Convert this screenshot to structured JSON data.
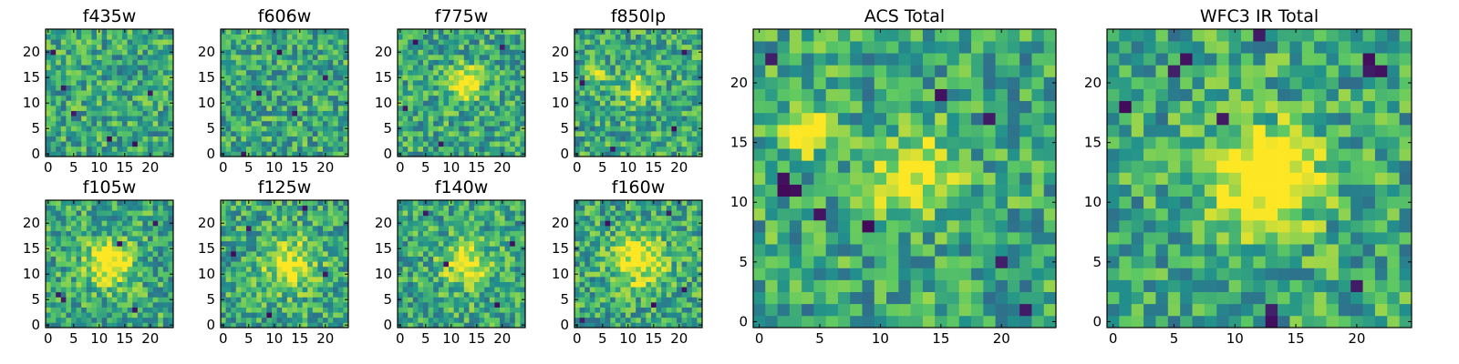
{
  "figure": {
    "background": "#ffffff",
    "colormap": "viridis",
    "colormap_stops": [
      "#440154",
      "#3b528b",
      "#21918c",
      "#5ec962",
      "#fde725"
    ],
    "font_family": "DejaVu Sans"
  },
  "chart_data": [
    {
      "type": "heatmap",
      "title": "f435w",
      "grid_size": 25,
      "seed": 11,
      "xlim": [
        0,
        24
      ],
      "ylim": [
        0,
        24
      ],
      "xticks": [
        0,
        5,
        10,
        15,
        20
      ],
      "yticks": [
        0,
        5,
        10,
        15,
        20
      ],
      "sources": [],
      "dark_pixels": [
        [
          3,
          13
        ],
        [
          5,
          8
        ],
        [
          12,
          3
        ],
        [
          20,
          12
        ],
        [
          1,
          20
        ],
        [
          17,
          2
        ]
      ]
    },
    {
      "type": "heatmap",
      "title": "f606w",
      "grid_size": 25,
      "seed": 23,
      "xlim": [
        0,
        24
      ],
      "ylim": [
        0,
        24
      ],
      "xticks": [
        0,
        5,
        10,
        15,
        20
      ],
      "yticks": [
        0,
        5,
        10,
        15,
        20
      ],
      "sources": [],
      "dark_pixels": [
        [
          11,
          20
        ],
        [
          7,
          12
        ],
        [
          20,
          15
        ],
        [
          4,
          0
        ],
        [
          14,
          8
        ]
      ]
    },
    {
      "type": "heatmap",
      "title": "f775w",
      "grid_size": 25,
      "seed": 37,
      "xlim": [
        0,
        24
      ],
      "ylim": [
        0,
        24
      ],
      "xticks": [
        0,
        5,
        10,
        15,
        20
      ],
      "yticks": [
        0,
        5,
        10,
        15,
        20
      ],
      "sources": [
        [
          13,
          14,
          2.2,
          0.55
        ]
      ],
      "dark_pixels": [
        [
          3,
          22
        ],
        [
          8,
          2
        ],
        [
          20,
          21
        ],
        [
          1,
          9
        ]
      ]
    },
    {
      "type": "heatmap",
      "title": "f850lp",
      "grid_size": 25,
      "seed": 41,
      "xlim": [
        0,
        24
      ],
      "ylim": [
        0,
        24
      ],
      "xticks": [
        0,
        5,
        10,
        15,
        20
      ],
      "yticks": [
        0,
        5,
        10,
        15,
        20
      ],
      "sources": [
        [
          4,
          16,
          0.9,
          0.8
        ],
        [
          12,
          13,
          2.2,
          0.35
        ]
      ],
      "dark_pixels": [
        [
          1,
          14
        ],
        [
          19,
          5
        ],
        [
          21,
          20
        ],
        [
          7,
          1
        ]
      ]
    },
    {
      "type": "heatmap",
      "title": "f105w",
      "grid_size": 25,
      "seed": 53,
      "xlim": [
        0,
        24
      ],
      "ylim": [
        0,
        24
      ],
      "xticks": [
        0,
        5,
        10,
        15,
        20
      ],
      "yticks": [
        0,
        5,
        10,
        15,
        20
      ],
      "sources": [
        [
          12,
          12,
          3.0,
          0.55
        ]
      ],
      "dark_pixels": [
        [
          2,
          6
        ],
        [
          3,
          5
        ],
        [
          14,
          16
        ],
        [
          17,
          3
        ],
        [
          21,
          20
        ]
      ]
    },
    {
      "type": "heatmap",
      "title": "f125w",
      "grid_size": 25,
      "seed": 67,
      "xlim": [
        0,
        24
      ],
      "ylim": [
        0,
        24
      ],
      "xticks": [
        0,
        5,
        10,
        15,
        20
      ],
      "yticks": [
        0,
        5,
        10,
        15,
        20
      ],
      "sources": [
        [
          13,
          12,
          3.5,
          0.4
        ]
      ],
      "dark_pixels": [
        [
          2,
          14
        ],
        [
          5,
          19
        ],
        [
          16,
          23
        ],
        [
          20,
          10
        ],
        [
          9,
          2
        ]
      ]
    },
    {
      "type": "heatmap",
      "title": "f140w",
      "grid_size": 25,
      "seed": 79,
      "xlim": [
        0,
        24
      ],
      "ylim": [
        0,
        24
      ],
      "xticks": [
        0,
        5,
        10,
        15,
        20
      ],
      "yticks": [
        0,
        5,
        10,
        15,
        20
      ],
      "sources": [
        [
          13,
          12,
          3.0,
          0.45
        ]
      ],
      "dark_pixels": [
        [
          9,
          12
        ],
        [
          5,
          22
        ],
        [
          19,
          4
        ],
        [
          22,
          16
        ]
      ]
    },
    {
      "type": "heatmap",
      "title": "f160w",
      "grid_size": 25,
      "seed": 97,
      "xlim": [
        0,
        24
      ],
      "ylim": [
        0,
        24
      ],
      "xticks": [
        0,
        5,
        10,
        15,
        20
      ],
      "yticks": [
        0,
        5,
        10,
        15,
        20
      ],
      "sources": [
        [
          12,
          13,
          3.5,
          0.45
        ]
      ],
      "dark_pixels": [
        [
          1,
          1
        ],
        [
          6,
          20
        ],
        [
          18,
          22
        ],
        [
          21,
          7
        ],
        [
          15,
          4
        ]
      ]
    },
    {
      "type": "heatmap",
      "title": "ACS Total",
      "grid_size": 25,
      "seed": 131,
      "xlim": [
        0,
        24
      ],
      "ylim": [
        0,
        24
      ],
      "xticks": [
        0,
        5,
        10,
        15,
        20
      ],
      "yticks": [
        0,
        5,
        10,
        15,
        20
      ],
      "sources": [
        [
          4,
          16,
          1.1,
          0.75
        ],
        [
          13,
          12.5,
          2.2,
          0.5
        ],
        [
          10,
          10,
          0.6,
          0.45
        ]
      ],
      "dark_pixels": [
        [
          1,
          22
        ],
        [
          2,
          12
        ],
        [
          2,
          11
        ],
        [
          3,
          11
        ],
        [
          5,
          9
        ],
        [
          9,
          8
        ],
        [
          20,
          5
        ],
        [
          22,
          1
        ],
        [
          19,
          17
        ],
        [
          15,
          19
        ]
      ]
    },
    {
      "type": "heatmap",
      "title": "WFC3 IR Total",
      "grid_size": 25,
      "seed": 149,
      "xlim": [
        0,
        24
      ],
      "ylim": [
        0,
        24
      ],
      "xticks": [
        0,
        5,
        10,
        15,
        20
      ],
      "yticks": [
        0,
        5,
        10,
        15,
        20
      ],
      "sources": [
        [
          12.5,
          12,
          2.8,
          0.7
        ]
      ],
      "dark_pixels": [
        [
          6,
          22
        ],
        [
          5,
          21
        ],
        [
          21,
          21
        ],
        [
          22,
          21
        ],
        [
          21,
          22
        ],
        [
          1,
          18
        ],
        [
          9,
          17
        ],
        [
          12,
          24
        ],
        [
          13,
          0
        ],
        [
          13,
          1
        ],
        [
          20,
          3
        ]
      ]
    }
  ]
}
